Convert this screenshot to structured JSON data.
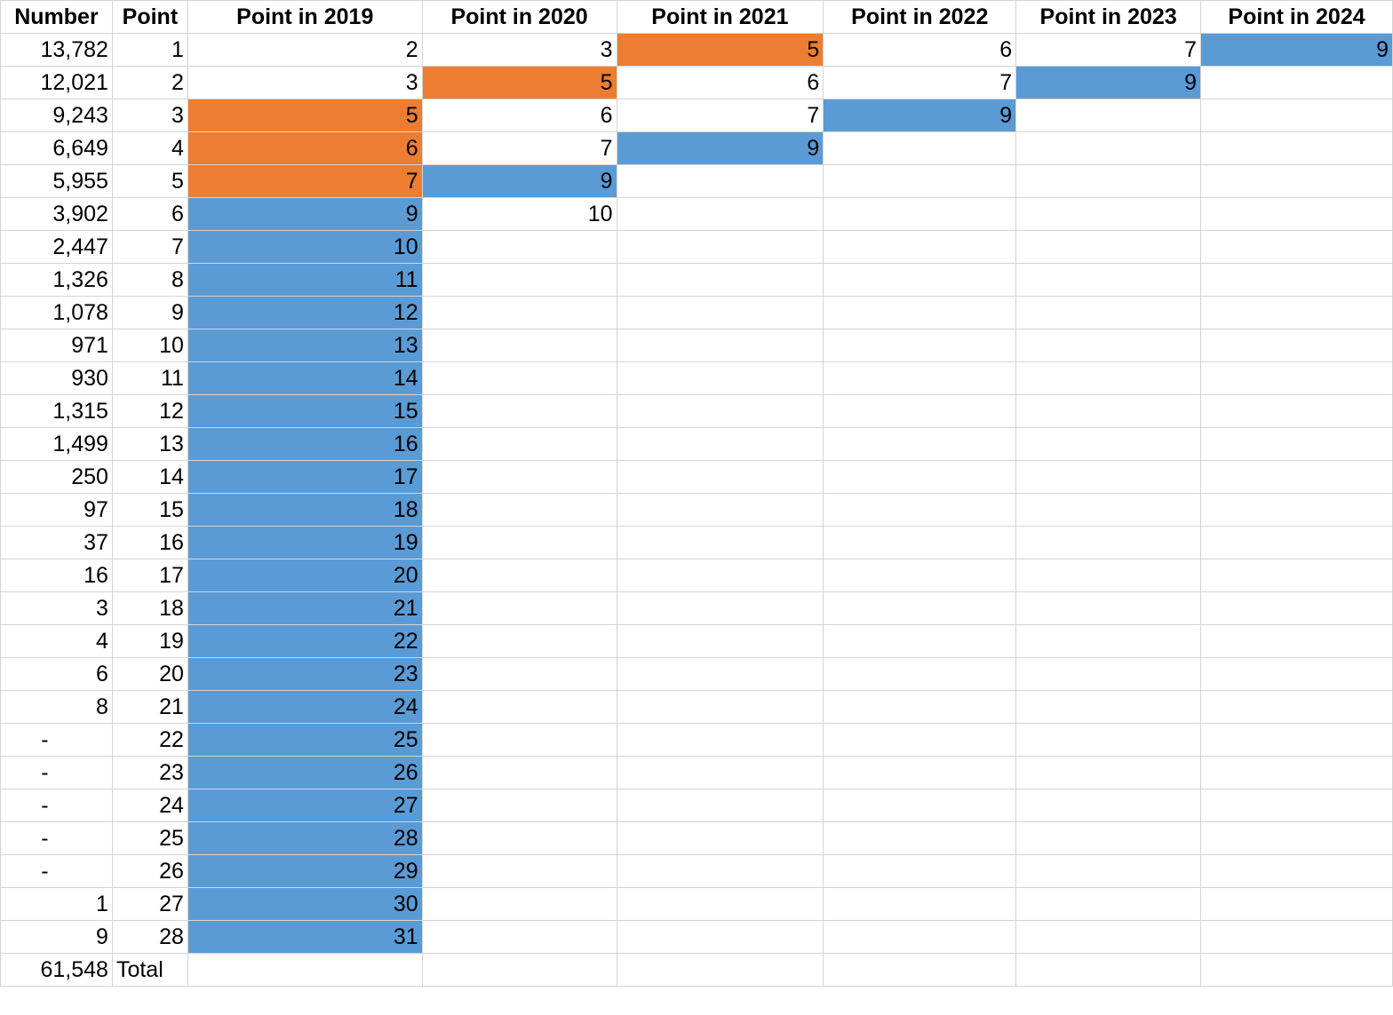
{
  "colors": {
    "orange": "#ed7d31",
    "blue": "#5b9bd5",
    "gridline": "#d4d4d4"
  },
  "headers": [
    "Number",
    "Point",
    "Point in 2019",
    "Point in 2020",
    "Point in 2021",
    "Point in 2022",
    "Point in 2023",
    "Point in 2024"
  ],
  "rows": [
    [
      {
        "v": "13,782"
      },
      {
        "v": "1"
      },
      {
        "v": "2"
      },
      {
        "v": "3"
      },
      {
        "v": "5",
        "fill": "orange"
      },
      {
        "v": "6"
      },
      {
        "v": "7"
      },
      {
        "v": "9",
        "fill": "blue"
      }
    ],
    [
      {
        "v": "12,021"
      },
      {
        "v": "2"
      },
      {
        "v": "3"
      },
      {
        "v": "5",
        "fill": "orange"
      },
      {
        "v": "6"
      },
      {
        "v": "7"
      },
      {
        "v": "9",
        "fill": "blue"
      },
      {
        "v": ""
      }
    ],
    [
      {
        "v": "9,243"
      },
      {
        "v": "3"
      },
      {
        "v": "5",
        "fill": "orange"
      },
      {
        "v": "6"
      },
      {
        "v": "7"
      },
      {
        "v": "9",
        "fill": "blue"
      },
      {
        "v": ""
      },
      {
        "v": ""
      }
    ],
    [
      {
        "v": "6,649"
      },
      {
        "v": "4"
      },
      {
        "v": "6",
        "fill": "orange"
      },
      {
        "v": "7"
      },
      {
        "v": "9",
        "fill": "blue"
      },
      {
        "v": ""
      },
      {
        "v": ""
      },
      {
        "v": ""
      }
    ],
    [
      {
        "v": "5,955"
      },
      {
        "v": "5"
      },
      {
        "v": "7",
        "fill": "orange"
      },
      {
        "v": "9",
        "fill": "blue"
      },
      {
        "v": ""
      },
      {
        "v": ""
      },
      {
        "v": ""
      },
      {
        "v": ""
      }
    ],
    [
      {
        "v": "3,902"
      },
      {
        "v": "6"
      },
      {
        "v": "9",
        "fill": "blue"
      },
      {
        "v": "10"
      },
      {
        "v": ""
      },
      {
        "v": ""
      },
      {
        "v": ""
      },
      {
        "v": ""
      }
    ],
    [
      {
        "v": "2,447"
      },
      {
        "v": "7"
      },
      {
        "v": "10",
        "fill": "blue"
      },
      {
        "v": ""
      },
      {
        "v": ""
      },
      {
        "v": ""
      },
      {
        "v": ""
      },
      {
        "v": ""
      }
    ],
    [
      {
        "v": "1,326"
      },
      {
        "v": "8"
      },
      {
        "v": "11",
        "fill": "blue"
      },
      {
        "v": ""
      },
      {
        "v": ""
      },
      {
        "v": ""
      },
      {
        "v": ""
      },
      {
        "v": ""
      }
    ],
    [
      {
        "v": "1,078"
      },
      {
        "v": "9"
      },
      {
        "v": "12",
        "fill": "blue"
      },
      {
        "v": ""
      },
      {
        "v": ""
      },
      {
        "v": ""
      },
      {
        "v": ""
      },
      {
        "v": ""
      }
    ],
    [
      {
        "v": "971"
      },
      {
        "v": "10"
      },
      {
        "v": "13",
        "fill": "blue"
      },
      {
        "v": ""
      },
      {
        "v": ""
      },
      {
        "v": ""
      },
      {
        "v": ""
      },
      {
        "v": ""
      }
    ],
    [
      {
        "v": "930"
      },
      {
        "v": "11"
      },
      {
        "v": "14",
        "fill": "blue"
      },
      {
        "v": ""
      },
      {
        "v": ""
      },
      {
        "v": ""
      },
      {
        "v": ""
      },
      {
        "v": ""
      }
    ],
    [
      {
        "v": "1,315"
      },
      {
        "v": "12"
      },
      {
        "v": "15",
        "fill": "blue"
      },
      {
        "v": ""
      },
      {
        "v": ""
      },
      {
        "v": ""
      },
      {
        "v": ""
      },
      {
        "v": ""
      }
    ],
    [
      {
        "v": "1,499"
      },
      {
        "v": "13"
      },
      {
        "v": "16",
        "fill": "blue"
      },
      {
        "v": ""
      },
      {
        "v": ""
      },
      {
        "v": ""
      },
      {
        "v": ""
      },
      {
        "v": ""
      }
    ],
    [
      {
        "v": "250"
      },
      {
        "v": "14"
      },
      {
        "v": "17",
        "fill": "blue"
      },
      {
        "v": ""
      },
      {
        "v": ""
      },
      {
        "v": ""
      },
      {
        "v": ""
      },
      {
        "v": ""
      }
    ],
    [
      {
        "v": "97"
      },
      {
        "v": "15"
      },
      {
        "v": "18",
        "fill": "blue"
      },
      {
        "v": ""
      },
      {
        "v": ""
      },
      {
        "v": ""
      },
      {
        "v": ""
      },
      {
        "v": ""
      }
    ],
    [
      {
        "v": "37"
      },
      {
        "v": "16"
      },
      {
        "v": "19",
        "fill": "blue"
      },
      {
        "v": ""
      },
      {
        "v": ""
      },
      {
        "v": ""
      },
      {
        "v": ""
      },
      {
        "v": ""
      }
    ],
    [
      {
        "v": "16"
      },
      {
        "v": "17"
      },
      {
        "v": "20",
        "fill": "blue"
      },
      {
        "v": ""
      },
      {
        "v": ""
      },
      {
        "v": ""
      },
      {
        "v": ""
      },
      {
        "v": ""
      }
    ],
    [
      {
        "v": "3"
      },
      {
        "v": "18"
      },
      {
        "v": "21",
        "fill": "blue"
      },
      {
        "v": ""
      },
      {
        "v": ""
      },
      {
        "v": ""
      },
      {
        "v": ""
      },
      {
        "v": ""
      }
    ],
    [
      {
        "v": "4"
      },
      {
        "v": "19"
      },
      {
        "v": "22",
        "fill": "blue"
      },
      {
        "v": ""
      },
      {
        "v": ""
      },
      {
        "v": ""
      },
      {
        "v": ""
      },
      {
        "v": ""
      }
    ],
    [
      {
        "v": "6"
      },
      {
        "v": "20"
      },
      {
        "v": "23",
        "fill": "blue"
      },
      {
        "v": ""
      },
      {
        "v": ""
      },
      {
        "v": ""
      },
      {
        "v": ""
      },
      {
        "v": ""
      }
    ],
    [
      {
        "v": "8"
      },
      {
        "v": "21"
      },
      {
        "v": "24",
        "fill": "blue"
      },
      {
        "v": ""
      },
      {
        "v": ""
      },
      {
        "v": ""
      },
      {
        "v": ""
      },
      {
        "v": ""
      }
    ],
    [
      {
        "v": "-"
      },
      {
        "v": "22"
      },
      {
        "v": "25",
        "fill": "blue"
      },
      {
        "v": ""
      },
      {
        "v": ""
      },
      {
        "v": ""
      },
      {
        "v": ""
      },
      {
        "v": ""
      }
    ],
    [
      {
        "v": "-"
      },
      {
        "v": "23"
      },
      {
        "v": "26",
        "fill": "blue"
      },
      {
        "v": ""
      },
      {
        "v": ""
      },
      {
        "v": ""
      },
      {
        "v": ""
      },
      {
        "v": ""
      }
    ],
    [
      {
        "v": "-"
      },
      {
        "v": "24"
      },
      {
        "v": "27",
        "fill": "blue"
      },
      {
        "v": ""
      },
      {
        "v": ""
      },
      {
        "v": ""
      },
      {
        "v": ""
      },
      {
        "v": ""
      }
    ],
    [
      {
        "v": "-"
      },
      {
        "v": "25"
      },
      {
        "v": "28",
        "fill": "blue"
      },
      {
        "v": ""
      },
      {
        "v": ""
      },
      {
        "v": ""
      },
      {
        "v": ""
      },
      {
        "v": ""
      }
    ],
    [
      {
        "v": "-"
      },
      {
        "v": "26"
      },
      {
        "v": "29",
        "fill": "blue"
      },
      {
        "v": ""
      },
      {
        "v": ""
      },
      {
        "v": ""
      },
      {
        "v": ""
      },
      {
        "v": ""
      }
    ],
    [
      {
        "v": "1"
      },
      {
        "v": "27"
      },
      {
        "v": "30",
        "fill": "blue"
      },
      {
        "v": ""
      },
      {
        "v": ""
      },
      {
        "v": ""
      },
      {
        "v": ""
      },
      {
        "v": ""
      }
    ],
    [
      {
        "v": "9"
      },
      {
        "v": "28"
      },
      {
        "v": "31",
        "fill": "blue"
      },
      {
        "v": ""
      },
      {
        "v": ""
      },
      {
        "v": ""
      },
      {
        "v": ""
      },
      {
        "v": ""
      }
    ],
    [
      {
        "v": "61,548"
      },
      {
        "v": "Total",
        "align": "left"
      },
      {
        "v": ""
      },
      {
        "v": ""
      },
      {
        "v": ""
      },
      {
        "v": ""
      },
      {
        "v": ""
      },
      {
        "v": ""
      }
    ]
  ]
}
